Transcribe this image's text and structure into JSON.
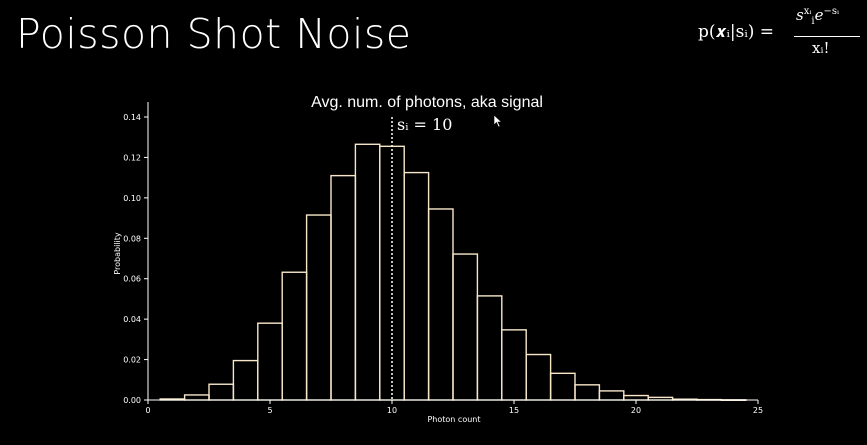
{
  "slide": {
    "title": "Poisson Shot Noise"
  },
  "formula": {
    "lhs": "p(𝒙ᵢ|sᵢ) =",
    "numerator_base": "s",
    "numerator_sub": "i",
    "numerator_sup": "xᵢ",
    "numerator_exp": "e",
    "numerator_exp_sup": "−sᵢ",
    "denominator": "xᵢ!"
  },
  "colors": {
    "background": "#000000",
    "bar_stroke": "#f7e7c8",
    "axis": "#ffffff",
    "text": "#ffffff"
  },
  "icons": {
    "cursor": "mouse-pointer-icon"
  },
  "chart_data": {
    "type": "bar",
    "title": "",
    "xlabel": "Photon count",
    "ylabel": "Probability",
    "xlim": [
      0,
      25
    ],
    "ylim": [
      0,
      0.14
    ],
    "xticks": [
      0,
      5,
      10,
      15,
      20,
      25
    ],
    "yticks": [
      0.0,
      0.02,
      0.04,
      0.06,
      0.08,
      0.1,
      0.12,
      0.14
    ],
    "ytick_labels": [
      "0.00",
      "0.02",
      "0.04",
      "0.06",
      "0.08",
      "0.10",
      "0.12",
      "0.14"
    ],
    "bin_width": 1,
    "bin_starts": [
      0.5,
      1.5,
      2.5,
      3.5,
      4.5,
      5.5,
      6.5,
      7.5,
      8.5,
      9.5,
      10.5,
      11.5,
      12.5,
      13.5,
      14.5,
      15.5,
      16.5,
      17.5,
      18.5,
      19.5,
      20.5,
      21.5,
      22.5,
      23.5
    ],
    "values": [
      0.0005,
      0.0025,
      0.0078,
      0.0195,
      0.038,
      0.0632,
      0.0915,
      0.111,
      0.1265,
      0.1255,
      0.1125,
      0.0945,
      0.0722,
      0.0515,
      0.0347,
      0.0225,
      0.0132,
      0.0075,
      0.0045,
      0.0022,
      0.0013,
      0.0004,
      0.0002,
      0.0001
    ],
    "grid": false,
    "annotation": {
      "text": "Avg. num. of photons, aka signal",
      "signal_label": "sᵢ = 10",
      "signal_x": 10
    }
  }
}
